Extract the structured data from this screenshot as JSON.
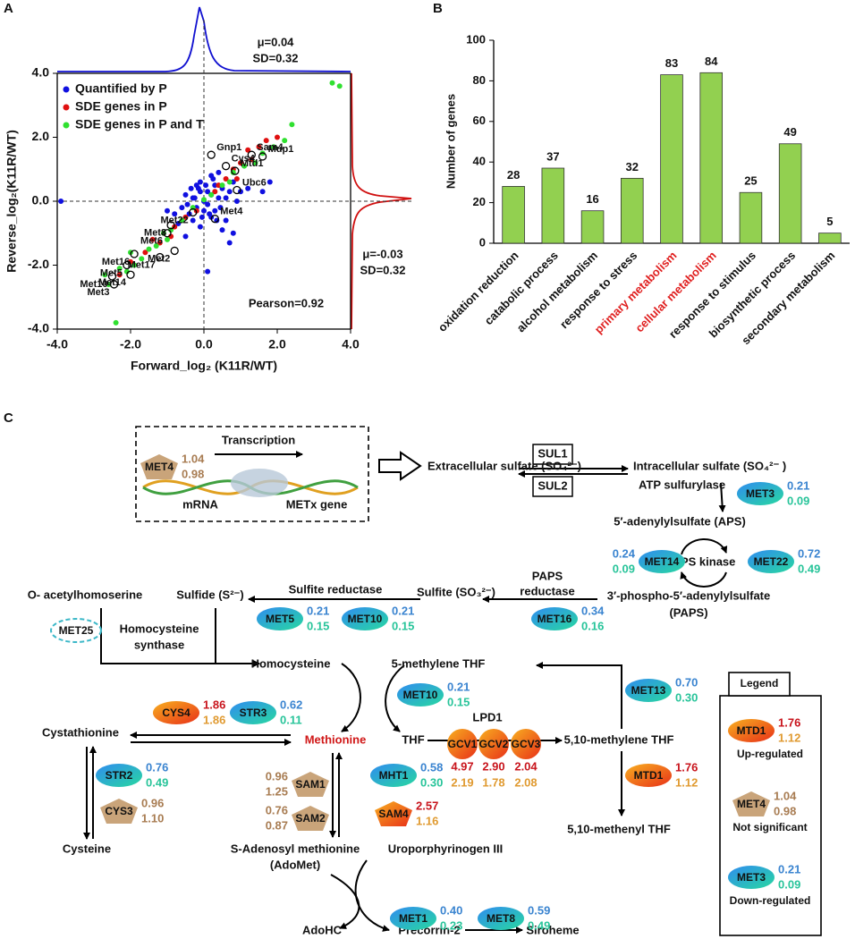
{
  "panel_labels": [
    "A",
    "B",
    "C"
  ],
  "chart_data": [
    {
      "type": "scatter",
      "xlabel": "Forward_log₂ (K11R/WT)",
      "ylabel": "Reverse_log₂(K11R/WT)",
      "xlim": [
        -4,
        4
      ],
      "ylim": [
        -4,
        4
      ],
      "xticks": [
        {
          "value": -4,
          "label": "-4.0"
        },
        {
          "value": -2,
          "label": "-2.0"
        },
        {
          "value": 0,
          "label": "0.0"
        },
        {
          "value": 2,
          "label": "2.0"
        },
        {
          "value": 4,
          "label": "4.0"
        }
      ],
      "yticks": [
        {
          "value": -4,
          "label": "-4.0"
        },
        {
          "value": -2,
          "label": "-2.0"
        },
        {
          "value": 0,
          "label": "0.0"
        },
        {
          "value": 2,
          "label": "2.0"
        },
        {
          "value": 4,
          "label": "4.0"
        }
      ],
      "legend": "upper left",
      "notes": [
        "μ=0.04",
        "SD=0.32",
        "μ=-0.03",
        "SD=0.32",
        "Pearson=0.92"
      ],
      "series": [
        {
          "name": "Quantified by P",
          "color": "#1010e0",
          "x": [
            -0.3,
            -0.2,
            -0.1,
            0,
            0.1,
            0.2,
            0.3,
            0.4,
            -0.4,
            -0.5,
            0.5,
            -0.2,
            0.2,
            0.0,
            -0.1,
            0.1,
            0.3,
            -0.3,
            0.6,
            -0.6,
            0.7,
            -0.7,
            0.15,
            -0.15,
            0.25,
            -0.25,
            0.45,
            -0.45,
            0.05,
            -0.05,
            0.8,
            1.0,
            1.2,
            1.6,
            -0.8,
            -1.0,
            0.5,
            0.8,
            -3.9,
            0.1,
            0.35,
            -0.35,
            0.6,
            -0.1,
            0.4,
            0.9,
            1.8,
            -0.5,
            0.2,
            0.7
          ],
          "y": [
            0.1,
            -0.2,
            0.3,
            0.0,
            -0.1,
            0.2,
            -0.3,
            0.1,
            -0.4,
            0.2,
            0.4,
            0.5,
            -0.5,
            -0.3,
            0.6,
            0.3,
            0.5,
            -0.6,
            0.1,
            -0.2,
            0.3,
            -0.7,
            -0.4,
            0.4,
            0.7,
            0.1,
            -0.2,
            -0.1,
            0.5,
            -0.5,
            0.6,
            0.3,
            0.4,
            0.3,
            -0.4,
            -0.3,
            -0.9,
            -1.0,
            0.0,
            -2.2,
            -0.6,
            0.4,
            -0.6,
            -0.8,
            0.9,
            0.0,
            0.6,
            -1.1,
            0.8,
            -1.3
          ]
        },
        {
          "name": "SDE genes in P",
          "color": "#e01010",
          "x": [
            1.2,
            1.5,
            1.7,
            1.0,
            0.8,
            0.6,
            0.4,
            0.3,
            -0.2,
            -0.5,
            -0.8,
            -1.2,
            -1.6,
            -2.0,
            -2.3,
            -1.4,
            1.3,
            2.0,
            0.9,
            -0.9
          ],
          "y": [
            1.6,
            1.7,
            1.9,
            1.2,
            1.0,
            0.7,
            0.5,
            0.3,
            -0.3,
            -0.5,
            -0.8,
            -1.3,
            -1.6,
            -1.9,
            -2.3,
            -1.2,
            1.3,
            2.0,
            0.7,
            -1.1
          ]
        },
        {
          "name": "SDE genes in P and T",
          "color": "#30e030",
          "x": [
            3.5,
            3.7,
            2.4,
            2.2,
            1.6,
            1.9,
            1.1,
            0.7,
            0.5,
            0.2,
            0.0,
            -0.3,
            -0.6,
            -0.9,
            -1.1,
            -1.3,
            -1.5,
            -1.7,
            -1.9,
            -2.1,
            -2.3,
            -2.6,
            -2.7,
            -2.4,
            -2.0,
            -1.0,
            1.4,
            0.8
          ],
          "y": [
            3.7,
            3.6,
            2.4,
            1.9,
            1.5,
            1.7,
            1.1,
            0.6,
            0.5,
            0.2,
            0.05,
            -0.2,
            -0.6,
            -0.9,
            -1.0,
            -1.4,
            -1.5,
            -1.8,
            -2.0,
            -2.2,
            -2.1,
            -2.6,
            -2.3,
            -3.8,
            -1.6,
            -1.2,
            1.2,
            0.9
          ]
        }
      ],
      "annotations": [
        {
          "text": "Gnp1",
          "x": 0.2,
          "y": 1.45
        },
        {
          "text": "Sam4",
          "x": 1.3,
          "y": 1.45
        },
        {
          "text": "Mup1",
          "x": 1.6,
          "y": 1.4
        },
        {
          "text": "Cys4",
          "x": 0.6,
          "y": 1.1
        },
        {
          "text": "Mtd1",
          "x": 0.85,
          "y": 0.95
        },
        {
          "text": "Ubc6",
          "x": 0.9,
          "y": 0.35
        },
        {
          "text": "Met4",
          "x": 0.3,
          "y": -0.55
        },
        {
          "text": "Met22",
          "x": -0.3,
          "y": -0.35
        },
        {
          "text": "Met8",
          "x": -0.9,
          "y": -0.75
        },
        {
          "text": "Met6",
          "x": -1.0,
          "y": -1.0
        },
        {
          "text": "Met2",
          "x": -0.8,
          "y": -1.55
        },
        {
          "text": "Met16",
          "x": -1.9,
          "y": -1.65
        },
        {
          "text": "Met17",
          "x": -1.2,
          "y": -1.75
        },
        {
          "text": "Met5",
          "x": -2.1,
          "y": -2.0
        },
        {
          "text": "Met14",
          "x": -2.0,
          "y": -2.3
        },
        {
          "text": "Met10",
          "x": -2.5,
          "y": -2.35
        },
        {
          "text": "Met3",
          "x": -2.45,
          "y": -2.6
        }
      ]
    },
    {
      "type": "bar",
      "ylabel": "Number of genes",
      "categories": [
        "oxidation reduction",
        "catabolic process",
        "alcohol metabolism",
        "response to stress",
        "primary metabolism",
        "cellular metabolism",
        "response to stimulus",
        "biosynthetic process",
        "secondary metabolism"
      ],
      "values": [
        28,
        37,
        16,
        32,
        83,
        84,
        25,
        49,
        5
      ],
      "color": "#92d050",
      "label_colors": [
        "#111111",
        "#111111",
        "#111111",
        "#111111",
        "#e02020",
        "#e02020",
        "#111111",
        "#111111",
        "#111111"
      ],
      "ylim": [
        0,
        100
      ],
      "yticks": [
        0,
        20,
        40,
        60,
        80,
        100
      ]
    }
  ],
  "diagram": {
    "texts": [
      "Transcription",
      "mRNA",
      "METx gene",
      "Extracellular sulfate (SO₄²⁻)",
      "SUL1",
      "SUL2",
      "Intracellular sulfate (SO₄²⁻ )",
      "ATP sulfurylase",
      "5′-adenylylsulfate (APS)",
      "APS kinase",
      "3′-phospho-5′-adenylylsulfate",
      "(PAPS)",
      "PAPS",
      "reductase",
      "Sulfite (SO₃²⁻)",
      "Sulfite reductase",
      "Sulfide (S²⁻)",
      "O- acetylhomoserine",
      "Homocysteine",
      "synthase",
      "Homocysteine",
      "5-methylene THF",
      "Methionine",
      "THF",
      "LPD1",
      "5,10-methylene THF",
      "5,10-methenyl  THF",
      "Cystathionine",
      "Cysteine",
      "S-Adenosyl methionine",
      "(AdoMet)",
      "Uroporphyrinogen III",
      "AdoHC",
      "Precorrin-2",
      "Siroheme"
    ],
    "enzymes": [
      {
        "label": "MET4",
        "kind": "ns",
        "shape": "pentagon",
        "values": [
          "1.04",
          "0.98"
        ]
      },
      {
        "label": "MET3",
        "kind": "down",
        "shape": "ellipse",
        "values": [
          "0.21",
          "0.09"
        ]
      },
      {
        "label": "MET14",
        "kind": "down",
        "shape": "ellipse",
        "values": [
          "0.24",
          "0.09"
        ]
      },
      {
        "label": "MET22",
        "kind": "down",
        "shape": "ellipse",
        "values": [
          "0.72",
          "0.49"
        ]
      },
      {
        "label": "MET5",
        "kind": "down",
        "shape": "ellipse",
        "values": [
          "0.21",
          "0.15"
        ]
      },
      {
        "label": "MET10",
        "kind": "down",
        "shape": "ellipse",
        "values": [
          "0.21",
          "0.15"
        ]
      },
      {
        "label": "MET16",
        "kind": "down",
        "shape": "ellipse",
        "values": [
          "0.34",
          "0.16"
        ]
      },
      {
        "label": "MET25",
        "kind": "unknown",
        "shape": "dashed",
        "values": []
      },
      {
        "label": "MET10",
        "kind": "down",
        "shape": "ellipse",
        "values": [
          "0.21",
          "0.15"
        ]
      },
      {
        "label": "MET13",
        "kind": "down",
        "shape": "ellipse",
        "values": [
          "0.70",
          "0.30"
        ]
      },
      {
        "label": "CYS4",
        "kind": "up",
        "shape": "ellipse",
        "values": [
          "1.86",
          "1.86"
        ]
      },
      {
        "label": "STR3",
        "kind": "down",
        "shape": "ellipse",
        "values": [
          "0.62",
          "0.11"
        ]
      },
      {
        "label": "STR2",
        "kind": "down",
        "shape": "ellipse",
        "values": [
          "0.76",
          "0.49"
        ]
      },
      {
        "label": "CYS3",
        "kind": "ns",
        "shape": "pentagon",
        "values": [
          "0.96",
          "1.10"
        ]
      },
      {
        "label": "SAM1",
        "kind": "ns",
        "shape": "pentagon",
        "values": [
          "0.96",
          "1.25"
        ]
      },
      {
        "label": "SAM2",
        "kind": "ns",
        "shape": "pentagon",
        "values": [
          "0.76",
          "0.87"
        ]
      },
      {
        "label": "MHT1",
        "kind": "down",
        "shape": "ellipse",
        "values": [
          "0.58",
          "0.30"
        ]
      },
      {
        "label": "SAM4",
        "kind": "up",
        "shape": "pentagon",
        "values": [
          "2.57",
          "1.16"
        ]
      },
      {
        "label": "GCV1",
        "kind": "up",
        "shape": "circle",
        "values": [
          "4.97",
          "2.19"
        ]
      },
      {
        "label": "GCV2",
        "kind": "up",
        "shape": "circle",
        "values": [
          "2.90",
          "1.78"
        ]
      },
      {
        "label": "GCV3",
        "kind": "up",
        "shape": "circle",
        "values": [
          "2.04",
          "2.08"
        ]
      },
      {
        "label": "MTD1",
        "kind": "up",
        "shape": "ellipse",
        "values": [
          "1.76",
          "1.12"
        ]
      },
      {
        "label": "MET1",
        "kind": "down",
        "shape": "ellipse",
        "values": [
          "0.40",
          "0.23"
        ]
      },
      {
        "label": "MET8",
        "kind": "down",
        "shape": "ellipse",
        "values": [
          "0.59",
          "0.49"
        ]
      }
    ],
    "legend": {
      "title": "Legend",
      "entries": [
        {
          "label": "Up-regulated",
          "enzyme": {
            "label": "MTD1",
            "kind": "up",
            "shape": "ellipse",
            "values": [
              "1.76",
              "1.12"
            ]
          }
        },
        {
          "label": "Not significant",
          "enzyme": {
            "label": "MET4",
            "kind": "ns",
            "shape": "pentagon",
            "values": [
              "1.04",
              "0.98"
            ]
          }
        },
        {
          "label": "Down-regulated",
          "enzyme": {
            "label": "MET3",
            "kind": "down",
            "shape": "ellipse",
            "values": [
              "0.21",
              "0.09"
            ]
          }
        }
      ]
    }
  }
}
